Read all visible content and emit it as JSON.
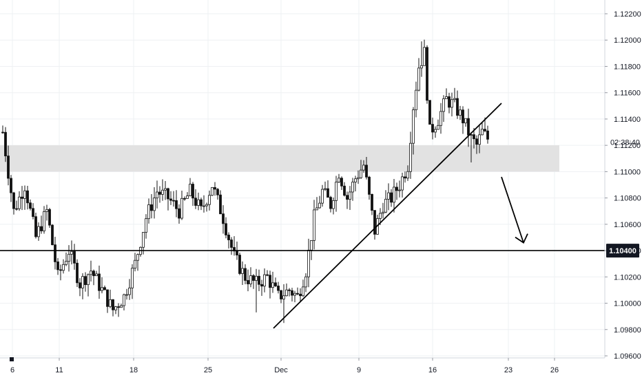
{
  "chart_data": {
    "type": "candlestick",
    "instrument_hint": "EURUSD",
    "y_axis": {
      "ticks": [
        "1.12200",
        "1.12000",
        "1.11800",
        "1.11600",
        "1.11400",
        "1.11200",
        "1.11000",
        "1.10800",
        "1.10600",
        "1.10400",
        "1.10200",
        "1.10000",
        "1.09800",
        "1.09600"
      ],
      "range": [
        1.0955,
        1.123
      ]
    },
    "x_axis": {
      "ticks": [
        "6",
        "11",
        "18",
        "25",
        "Dec",
        "9",
        "16",
        "23",
        "26"
      ]
    },
    "price_label": "1.10400",
    "countdown_label": "02:38:40",
    "zones": [
      {
        "name": "resistance-zone",
        "from": 1.11,
        "to": 1.112,
        "color": "#e2e2e2"
      }
    ],
    "horizontal_lines": [
      {
        "name": "support-line",
        "value": 1.104,
        "color": "#000000"
      }
    ],
    "trendlines": [
      {
        "name": "ascending-trendline",
        "from": [
          "Dec 2",
          1.0981
        ],
        "to": [
          "Dec 20",
          1.1152
        ]
      }
    ],
    "annotations": [
      {
        "name": "bearish-arrow",
        "type": "arrow",
        "from": [
          "Dec 23",
          1.1096
        ],
        "to": [
          "Dec 24",
          1.1046
        ]
      }
    ],
    "series_path": [
      [
        0,
        1.113
      ],
      [
        4,
        1.107
      ],
      [
        8,
        1.109
      ],
      [
        12,
        1.105
      ],
      [
        16,
        1.107
      ],
      [
        20,
        1.102
      ],
      [
        24,
        1.104
      ],
      [
        28,
        1.1015
      ],
      [
        32,
        1.1025
      ],
      [
        36,
        1.101
      ],
      [
        40,
        1.0995
      ],
      [
        44,
        1.1005
      ],
      [
        48,
        1.103
      ],
      [
        52,
        1.1065
      ],
      [
        56,
        1.1085
      ],
      [
        60,
        1.108
      ],
      [
        64,
        1.107
      ],
      [
        68,
        1.1085
      ],
      [
        72,
        1.107
      ],
      [
        76,
        1.109
      ],
      [
        80,
        1.1065
      ],
      [
        84,
        1.1035
      ],
      [
        88,
        1.102
      ],
      [
        92,
        1.1015
      ],
      [
        96,
        1.102
      ],
      [
        100,
        1.1005
      ],
      [
        104,
        1.101
      ],
      [
        107,
        1.1005
      ],
      [
        110,
        1.1025
      ],
      [
        113,
        1.1065
      ],
      [
        116,
        1.1085
      ],
      [
        119,
        1.1075
      ],
      [
        122,
        1.11
      ],
      [
        125,
        1.108
      ],
      [
        128,
        1.1095
      ],
      [
        131,
        1.1105
      ],
      [
        133,
        1.108
      ],
      [
        135,
        1.1055
      ],
      [
        138,
        1.1075
      ],
      [
        141,
        1.108
      ],
      [
        144,
        1.109
      ],
      [
        147,
        1.1105
      ],
      [
        149,
        1.115
      ],
      [
        151,
        1.118
      ],
      [
        153,
        1.119
      ],
      [
        155,
        1.113
      ],
      [
        158,
        1.114
      ],
      [
        161,
        1.1155
      ],
      [
        164,
        1.115
      ],
      [
        167,
        1.114
      ],
      [
        170,
        1.1125
      ],
      [
        172,
        1.112
      ],
      [
        174,
        1.113
      ],
      [
        176,
        1.1125
      ]
    ],
    "highlighted_extremes": [
      [
        40,
        1.099
      ],
      [
        92,
        1.0993
      ],
      [
        102,
        1.0985
      ],
      [
        152,
        1.1199
      ],
      [
        170,
        1.1107
      ]
    ]
  }
}
